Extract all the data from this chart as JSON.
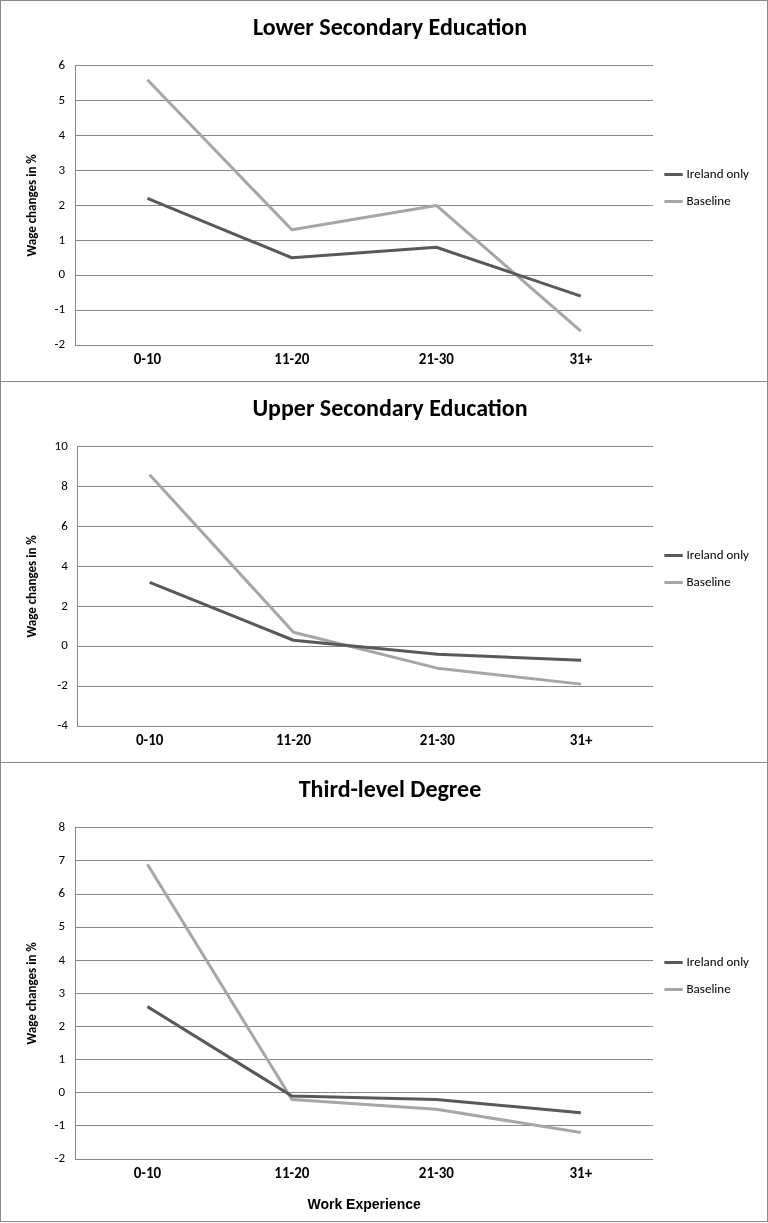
{
  "chart_data": [
    {
      "type": "line",
      "title": "Lower Secondary Education",
      "ylabel": "Wage changes in %",
      "categories": [
        "0-10",
        "11-20",
        "21-30",
        "31+"
      ],
      "series": [
        {
          "name": "Ireland only",
          "color": "#595959",
          "values": [
            2.2,
            0.5,
            0.8,
            -0.6
          ]
        },
        {
          "name": "Baseline",
          "color": "#a6a6a6",
          "values": [
            5.6,
            1.3,
            2.0,
            -1.6
          ]
        }
      ],
      "ylim": [
        -2,
        6
      ],
      "yticks": [
        -2,
        -1,
        0,
        1,
        2,
        3,
        4,
        5,
        6
      ],
      "grid": "y",
      "legend": "right",
      "marker": "none",
      "line_style": "solid"
    },
    {
      "type": "line",
      "title": "Upper Secondary Education",
      "ylabel": "Wage changes in %",
      "categories": [
        "0-10",
        "11-20",
        "21-30",
        "31+"
      ],
      "series": [
        {
          "name": "Ireland only",
          "color": "#595959",
          "values": [
            3.2,
            0.3,
            -0.4,
            -0.7
          ]
        },
        {
          "name": "Baseline",
          "color": "#a6a6a6",
          "values": [
            8.6,
            0.7,
            -1.1,
            -1.9
          ]
        }
      ],
      "ylim": [
        -4,
        10
      ],
      "yticks": [
        -4,
        -2,
        0,
        2,
        4,
        6,
        8,
        10
      ],
      "grid": "y",
      "legend": "right",
      "marker": "none",
      "line_style": "solid"
    },
    {
      "type": "line",
      "title": "Third-level Degree",
      "xlabel": "Work Experience",
      "ylabel": "Wage changes in %",
      "categories": [
        "0-10",
        "11-20",
        "21-30",
        "31+"
      ],
      "series": [
        {
          "name": "Ireland only",
          "color": "#595959",
          "values": [
            2.6,
            -0.1,
            -0.2,
            -0.6
          ]
        },
        {
          "name": "Baseline",
          "color": "#a6a6a6",
          "values": [
            6.9,
            -0.2,
            -0.5,
            -1.2
          ]
        }
      ],
      "ylim": [
        -2,
        8
      ],
      "yticks": [
        -2,
        -1,
        0,
        1,
        2,
        3,
        4,
        5,
        6,
        7,
        8
      ],
      "grid": "y",
      "legend": "right",
      "marker": "none",
      "line_style": "solid"
    }
  ]
}
